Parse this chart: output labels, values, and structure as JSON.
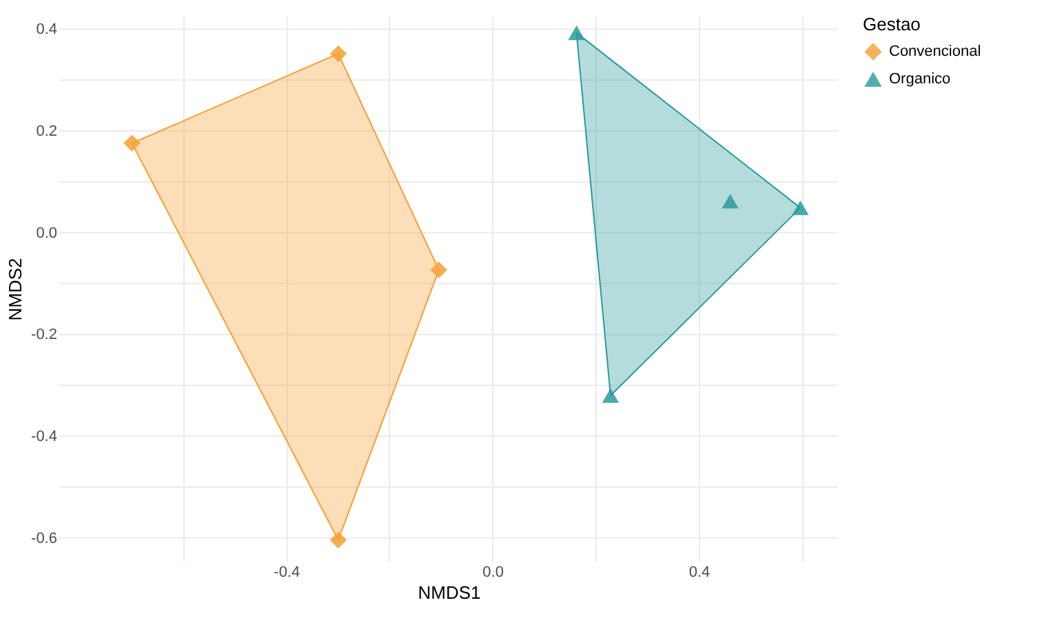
{
  "chart_data": {
    "type": "scatter",
    "xlabel": "NMDS1",
    "ylabel": "NMDS2",
    "legend_title": "Gestao",
    "legend": "right",
    "grid": true,
    "xlim": [
      -0.84,
      0.67
    ],
    "ylim": [
      -0.645,
      0.425
    ],
    "xticks": [
      {
        "value": -0.6,
        "label": null
      },
      -0.4,
      {
        "value": -0.2,
        "label": null
      },
      {
        "value": 0,
        "label": "0.0"
      },
      {
        "value": 0.2,
        "label": null
      },
      0.4,
      {
        "value": 0.6,
        "label": null
      }
    ],
    "yticks": [
      -0.6,
      {
        "value": -0.5,
        "label": null
      },
      -0.4,
      {
        "value": -0.3,
        "label": null
      },
      -0.2,
      {
        "value": -0.1,
        "label": null
      },
      {
        "value": 0,
        "label": "0.0"
      },
      {
        "value": 0.1,
        "label": null
      },
      0.2,
      {
        "value": 0.3,
        "label": null
      },
      0.4
    ],
    "series": [
      {
        "name": "Convencional",
        "color": "#f5a033",
        "marker": "diamond",
        "x": [
          -0.699,
          -0.299,
          -0.104,
          -0.299
        ],
        "values": [
          0.176,
          0.352,
          -0.073,
          -0.604
        ]
      },
      {
        "name": "Organico",
        "color": "#2a9a9c",
        "marker": "triangle",
        "x": [
          0.163,
          0.461,
          0.597,
          0.229
        ],
        "values": [
          0.393,
          0.062,
          0.049,
          -0.32
        ]
      }
    ]
  }
}
